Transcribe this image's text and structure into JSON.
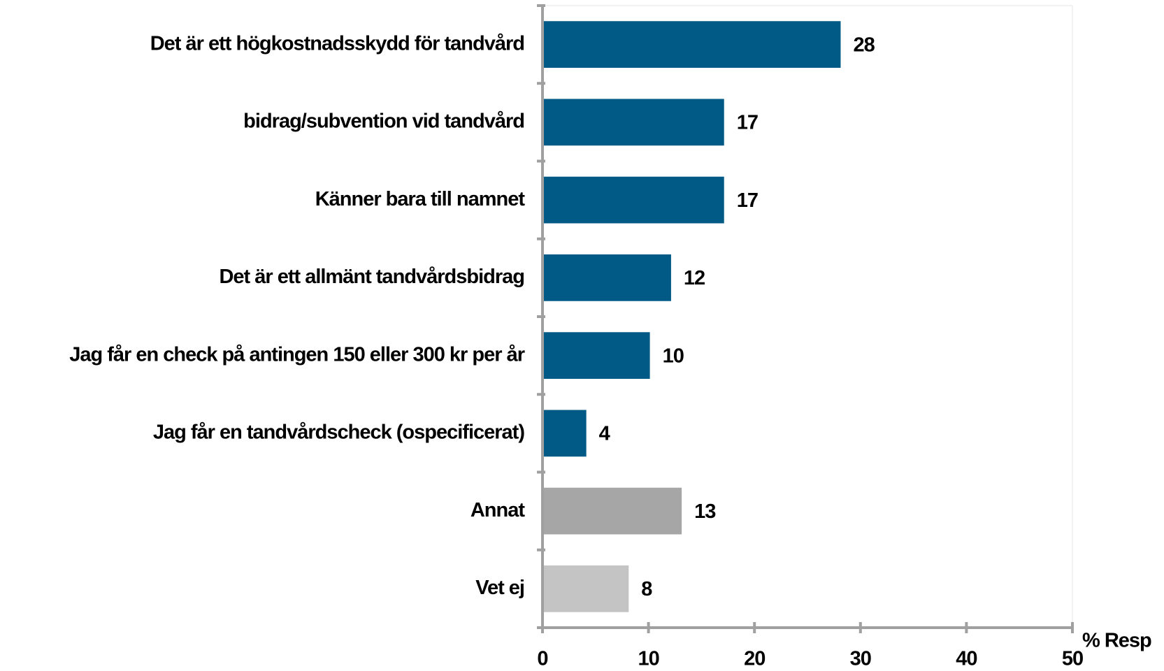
{
  "chart_data": {
    "type": "barh",
    "categories": [
      "Det är ett högkostnadsskydd för tandvård",
      "bidrag/subvention vid tandvård",
      "Känner bara till namnet",
      "Det är ett allmänt tandvårdsbidrag",
      "Jag får en check på antingen 150 eller 300 kr per år",
      "Jag får en tandvårdscheck (ospecificerat)",
      "Annat",
      "Vet ej"
    ],
    "values": [
      28,
      17,
      17,
      12,
      10,
      4,
      13,
      8
    ],
    "colors": [
      "#005a85",
      "#005a85",
      "#005a85",
      "#005a85",
      "#005a85",
      "#005a85",
      "#a6a6a6",
      "#c4c4c4"
    ],
    "xlabel": "% Resp",
    "xlim": [
      0,
      50
    ],
    "xticks": [
      0,
      10,
      20,
      30,
      40,
      50
    ],
    "grid": false
  }
}
